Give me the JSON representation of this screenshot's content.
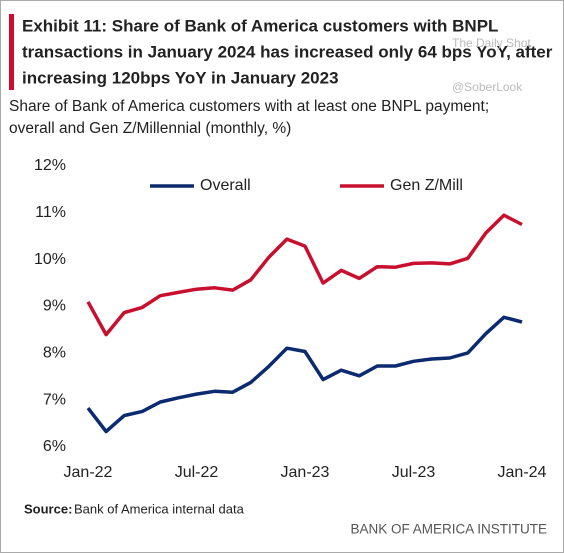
{
  "chart_data": {
    "type": "line",
    "title": [
      "Exhibit 11: Share of Bank of America customers with BNPL",
      "transactions in January 2024 has increased only 64 bps YoY, after",
      "increasing 120bps YoY in January 2023"
    ],
    "subtitle": [
      "Share of Bank of America customers with at least one BNPL payment;",
      "overall and Gen Z/Millennial (monthly, %)"
    ],
    "watermark": [
      "The Daily Shot",
      "@SoberLook"
    ],
    "source_label": "Source:",
    "source": "Bank of America internal data",
    "footer": "BANK OF AMERICA INSTITUTE",
    "categories": [
      "Jan-22",
      null,
      null,
      null,
      null,
      null,
      "Jul-22",
      null,
      null,
      null,
      null,
      null,
      "Jan-23",
      null,
      null,
      null,
      null,
      null,
      "Jul-23",
      null,
      null,
      null,
      null,
      null,
      "Jan-24"
    ],
    "series": [
      {
        "name": "Overall",
        "color": "#0b2a6f",
        "values": [
          6.83,
          6.33,
          6.67,
          6.76,
          6.96,
          7.05,
          7.13,
          7.19,
          7.17,
          7.38,
          7.72,
          8.11,
          8.04,
          7.44,
          7.64,
          7.52,
          7.73,
          7.73,
          7.83,
          7.88,
          7.9,
          8.01,
          8.42,
          8.77,
          8.67
        ]
      },
      {
        "name": "Gen Z/Mill",
        "color": "#c8102e",
        "values": [
          9.1,
          8.4,
          8.87,
          8.98,
          9.23,
          9.3,
          9.37,
          9.4,
          9.35,
          9.57,
          10.05,
          10.44,
          10.29,
          9.5,
          9.77,
          9.6,
          9.85,
          9.84,
          9.92,
          9.93,
          9.91,
          10.03,
          10.57,
          10.95,
          10.75
        ]
      }
    ],
    "ylim": [
      6,
      12
    ],
    "yticks": [
      {
        "value": 6,
        "label": "6%"
      },
      {
        "value": 7,
        "label": "7%"
      },
      {
        "value": 8,
        "label": "8%"
      },
      {
        "value": 9,
        "label": "9%"
      },
      {
        "value": 10,
        "label": "10%"
      },
      {
        "value": 11,
        "label": "11%"
      },
      {
        "value": 12,
        "label": "12%"
      }
    ],
    "grid": false,
    "legend": "top"
  }
}
